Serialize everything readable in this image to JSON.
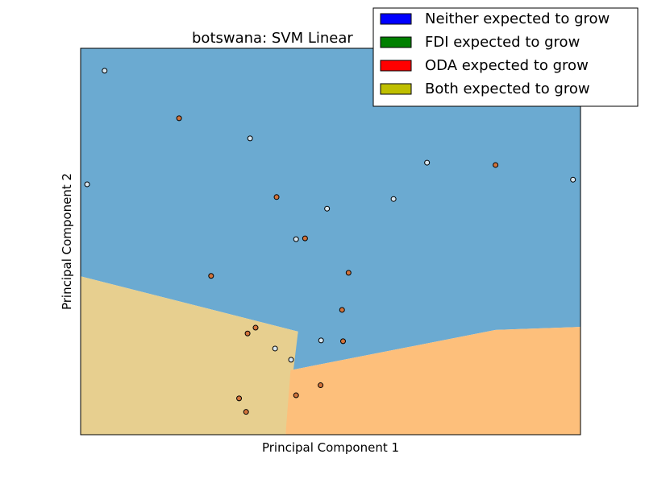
{
  "chart_data": {
    "type": "scatter",
    "title": "botswana: SVM Linear",
    "xlabel": "Principal Component 1",
    "ylabel": "Principal Component 2",
    "xlim": [
      0,
      100
    ],
    "ylim": [
      0,
      100
    ],
    "ticks": "none",
    "grid": false,
    "legend": {
      "placement": "top-right",
      "entries": [
        {
          "label": "Neither expected to grow",
          "color": "#0000ff"
        },
        {
          "label": "FDI expected to grow",
          "color": "#008000"
        },
        {
          "label": "ODA expected to grow",
          "color": "#ff0000"
        },
        {
          "label": "Both expected to grow",
          "color": "#bfbf00"
        }
      ]
    },
    "decision_regions": [
      {
        "class": "Neither expected to grow",
        "color": "#6baad1",
        "polygon": [
          [
            0,
            100
          ],
          [
            100,
            100
          ],
          [
            100,
            27.9
          ],
          [
            83,
            27.1
          ],
          [
            42,
            16.7
          ],
          [
            43.5,
            26.7
          ],
          [
            0,
            41
          ]
        ]
      },
      {
        "class": "Both expected to grow",
        "color": "#e7cf8f",
        "polygon": [
          [
            0,
            0
          ],
          [
            41,
            0
          ],
          [
            43.5,
            26.7
          ],
          [
            0,
            41
          ]
        ]
      },
      {
        "class": "ODA expected to grow",
        "color": "#fdbf7b",
        "polygon": [
          [
            41,
            0
          ],
          [
            100,
            0
          ],
          [
            100,
            27.9
          ],
          [
            83,
            27.1
          ],
          [
            42,
            16.7
          ]
        ]
      }
    ],
    "series": [
      {
        "class_color": "#ffffff",
        "label_class": "light",
        "points": [
          [
            4.8,
            94.2
          ],
          [
            33.9,
            76.7
          ],
          [
            1.3,
            64.8
          ],
          [
            69.3,
            70.4
          ],
          [
            62.6,
            61.0
          ],
          [
            49.3,
            58.5
          ],
          [
            98.5,
            66.0
          ],
          [
            43.1,
            50.6
          ],
          [
            48.1,
            24.4
          ],
          [
            38.9,
            22.3
          ],
          [
            42.1,
            19.4
          ]
        ]
      },
      {
        "class_color": "#cc6633",
        "label_class": "dark",
        "points": [
          [
            19.7,
            81.9
          ],
          [
            39.2,
            61.5
          ],
          [
            44.9,
            50.8
          ],
          [
            83.0,
            69.8
          ],
          [
            26.1,
            41.1
          ],
          [
            53.6,
            41.9
          ],
          [
            52.3,
            32.3
          ],
          [
            52.5,
            24.2
          ],
          [
            35.0,
            27.7
          ],
          [
            33.4,
            26.2
          ],
          [
            48.0,
            12.8
          ],
          [
            43.1,
            10.2
          ],
          [
            31.7,
            9.4
          ],
          [
            33.1,
            5.9
          ]
        ]
      }
    ]
  },
  "colors": {
    "point_dark": "#d2733b",
    "point_light": "#d7e6f0",
    "point_mid": "#e6a15c"
  }
}
